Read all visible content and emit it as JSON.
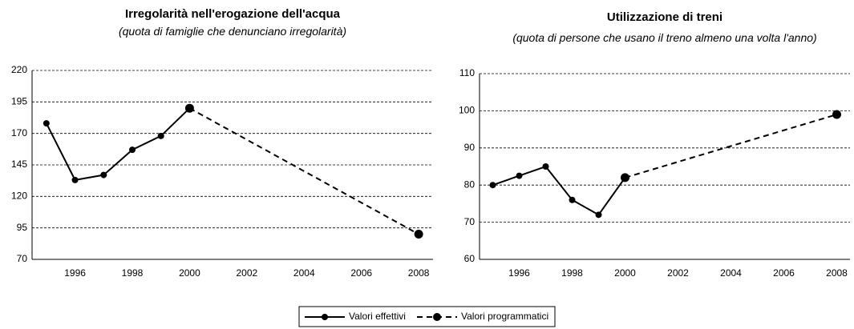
{
  "chart_data": [
    {
      "type": "line",
      "title": "Irregolarità nell'erogazione dell'acqua",
      "subtitle": "(quota di famiglie che denunciano irregolarità)",
      "categories": [
        null,
        "1996",
        null,
        "1998",
        null,
        "2000",
        null,
        "2002",
        null,
        "2004",
        null,
        "2006",
        null,
        "2008"
      ],
      "series": [
        {
          "name": "Valori effettivi",
          "color": "#000000",
          "dash": false,
          "values": [
            178,
            133,
            137,
            157,
            168,
            190,
            null,
            null,
            null,
            null,
            null,
            null,
            null,
            null
          ]
        },
        {
          "name": "Valori programmatici",
          "color": "#000000",
          "dash": true,
          "values": [
            null,
            null,
            null,
            null,
            null,
            190,
            null,
            null,
            null,
            null,
            null,
            null,
            null,
            90
          ]
        }
      ],
      "ylim": [
        70,
        220
      ],
      "yticks": [
        70,
        95,
        120,
        145,
        170,
        195,
        220
      ],
      "grid": true
    },
    {
      "type": "line",
      "title": "Utilizzazione di treni",
      "subtitle": "(quota di persone che usano il treno almeno una volta l'anno)",
      "categories": [
        null,
        "1996",
        null,
        "1998",
        null,
        "2000",
        null,
        "2002",
        null,
        "2004",
        null,
        "2006",
        null,
        "2008"
      ],
      "series": [
        {
          "name": "Valori effettivi",
          "color": "#000000",
          "dash": false,
          "values": [
            80,
            82.5,
            85,
            76,
            72,
            82,
            null,
            null,
            null,
            null,
            null,
            null,
            null,
            null
          ]
        },
        {
          "name": "Valori programmatici",
          "color": "#000000",
          "dash": true,
          "values": [
            null,
            null,
            null,
            null,
            null,
            82,
            null,
            null,
            null,
            null,
            null,
            null,
            null,
            99
          ]
        }
      ],
      "ylim": [
        60,
        110
      ],
      "yticks": [
        60,
        70,
        80,
        90,
        100,
        110
      ],
      "grid": true
    }
  ]
}
